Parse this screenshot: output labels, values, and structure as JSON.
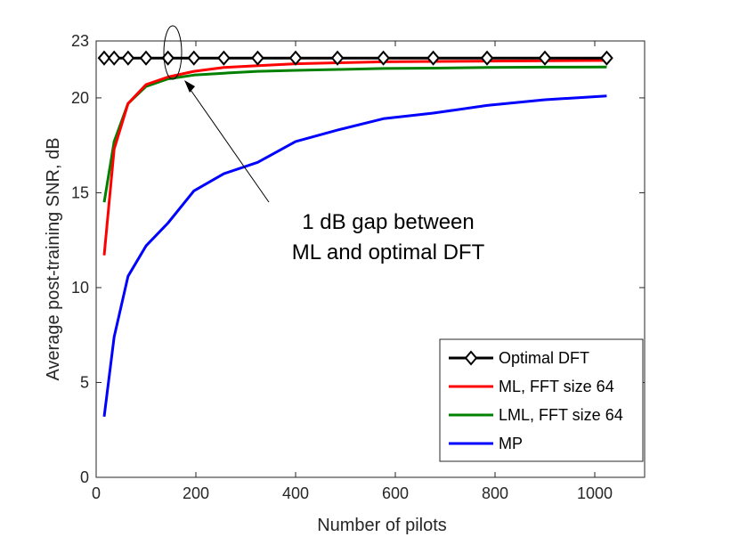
{
  "chart_data": {
    "type": "line",
    "title": "",
    "xlabel": "Number of pilots",
    "ylabel": "Average post-training SNR, dB",
    "xlim": [
      0,
      1100
    ],
    "ylim": [
      0,
      23
    ],
    "xticks": [
      0,
      200,
      400,
      600,
      800,
      1000
    ],
    "yticks": [
      0,
      5,
      10,
      15,
      20,
      23
    ],
    "grid": false,
    "legend_position": "bottom-right",
    "series": [
      {
        "name": "Optimal DFT",
        "color": "#000000",
        "marker": "diamond",
        "x": [
          16,
          36,
          64,
          100,
          144,
          196,
          256,
          324,
          400,
          484,
          576,
          676,
          784,
          900,
          1024
        ],
        "y": [
          22.1,
          22.1,
          22.1,
          22.1,
          22.1,
          22.1,
          22.1,
          22.1,
          22.1,
          22.1,
          22.1,
          22.1,
          22.1,
          22.1,
          22.1
        ]
      },
      {
        "name": "ML, FFT size 64",
        "color": "#ff0000",
        "marker": "none",
        "x": [
          16,
          36,
          64,
          100,
          144,
          196,
          256,
          324,
          400,
          484,
          576,
          676,
          784,
          900,
          1024
        ],
        "y": [
          11.7,
          17.3,
          19.7,
          20.7,
          21.1,
          21.4,
          21.6,
          21.7,
          21.8,
          21.85,
          21.9,
          21.92,
          21.94,
          21.96,
          21.97
        ]
      },
      {
        "name": "LML, FFT size 64",
        "color": "#008000",
        "marker": "none",
        "x": [
          16,
          36,
          64,
          100,
          144,
          196,
          256,
          324,
          400,
          484,
          576,
          676,
          784,
          900,
          1024
        ],
        "y": [
          14.5,
          17.7,
          19.7,
          20.6,
          21.0,
          21.2,
          21.3,
          21.4,
          21.45,
          21.5,
          21.55,
          21.57,
          21.6,
          21.62,
          21.63
        ]
      },
      {
        "name": "MP",
        "color": "#0000ff",
        "marker": "none",
        "x": [
          16,
          36,
          64,
          100,
          144,
          196,
          256,
          324,
          400,
          484,
          576,
          676,
          784,
          900,
          1024
        ],
        "y": [
          3.2,
          7.4,
          10.6,
          12.2,
          13.4,
          15.1,
          16.0,
          16.6,
          17.7,
          18.3,
          18.9,
          19.2,
          19.6,
          19.9,
          20.1
        ]
      }
    ],
    "annotation": {
      "lines": [
        "1 dB gap between",
        "ML and optimal DFT"
      ],
      "ellipse_center": [
        144,
        21.6
      ],
      "arrow_target": [
        160,
        20.9
      ]
    }
  }
}
